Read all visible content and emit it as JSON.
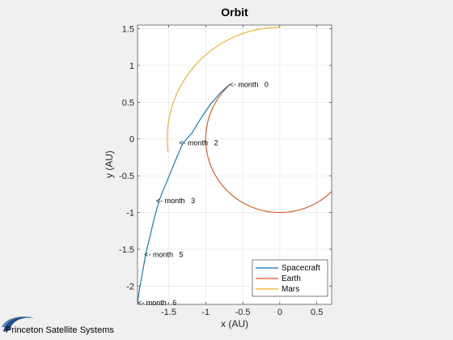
{
  "chart_data": {
    "type": "line",
    "title": "Orbit",
    "xlabel": "x (AU)",
    "ylabel": "y (AU)",
    "xlim": [
      -1.92,
      0.7
    ],
    "ylim": [
      -2.25,
      1.55
    ],
    "xticks": [
      -1.5,
      -1,
      -0.5,
      0,
      0.5
    ],
    "xtick_labels": [
      "-1.5",
      "-1",
      "-0.5",
      "0",
      "0.5"
    ],
    "yticks": [
      -2,
      -1.5,
      -1,
      -0.5,
      0,
      0.5,
      1,
      1.5
    ],
    "ytick_labels": [
      "-2",
      "-1.5",
      "-1",
      "-0.5",
      "0",
      "0.5",
      "1",
      "1.5"
    ],
    "grid": true,
    "legend_position": "bottom-right",
    "series": [
      {
        "name": "Spacecraft",
        "color": "#0072BD",
        "points": [
          [
            -0.68,
            0.74
          ],
          [
            -0.8,
            0.63
          ],
          [
            -0.93,
            0.48
          ],
          [
            -1.06,
            0.29
          ],
          [
            -1.18,
            0.09
          ],
          [
            -1.31,
            -0.06
          ],
          [
            -1.42,
            -0.32
          ],
          [
            -1.53,
            -0.59
          ],
          [
            -1.63,
            -0.84
          ],
          [
            -1.7,
            -1.1
          ],
          [
            -1.76,
            -1.36
          ],
          [
            -1.81,
            -1.57
          ],
          [
            -1.85,
            -1.8
          ],
          [
            -1.89,
            -2.02
          ],
          [
            -1.92,
            -2.23
          ]
        ]
      },
      {
        "name": "Earth",
        "color": "#D95319",
        "center": [
          0,
          0
        ],
        "radius": 1.0,
        "start_angle_deg": 132,
        "end_angle_deg": 316
      },
      {
        "name": "Mars",
        "color": "#EDB120",
        "center": [
          0,
          0
        ],
        "radius": 1.52,
        "start_angle_deg": 187,
        "end_angle_deg": 90
      }
    ],
    "annotations": [
      {
        "text": "<- month   0",
        "x": -0.68,
        "y": 0.74
      },
      {
        "text": "<- month   2",
        "x": -1.36,
        "y": -0.05
      },
      {
        "text": "<- month   3",
        "x": -1.67,
        "y": -0.84
      },
      {
        "text": "<- month   5",
        "x": -1.83,
        "y": -1.57
      },
      {
        "text": "<- month   6",
        "x": -1.92,
        "y": -2.23
      }
    ]
  },
  "branding": {
    "company": "Princeton Satellite Systems",
    "logo_color": "#1f4e8c"
  }
}
